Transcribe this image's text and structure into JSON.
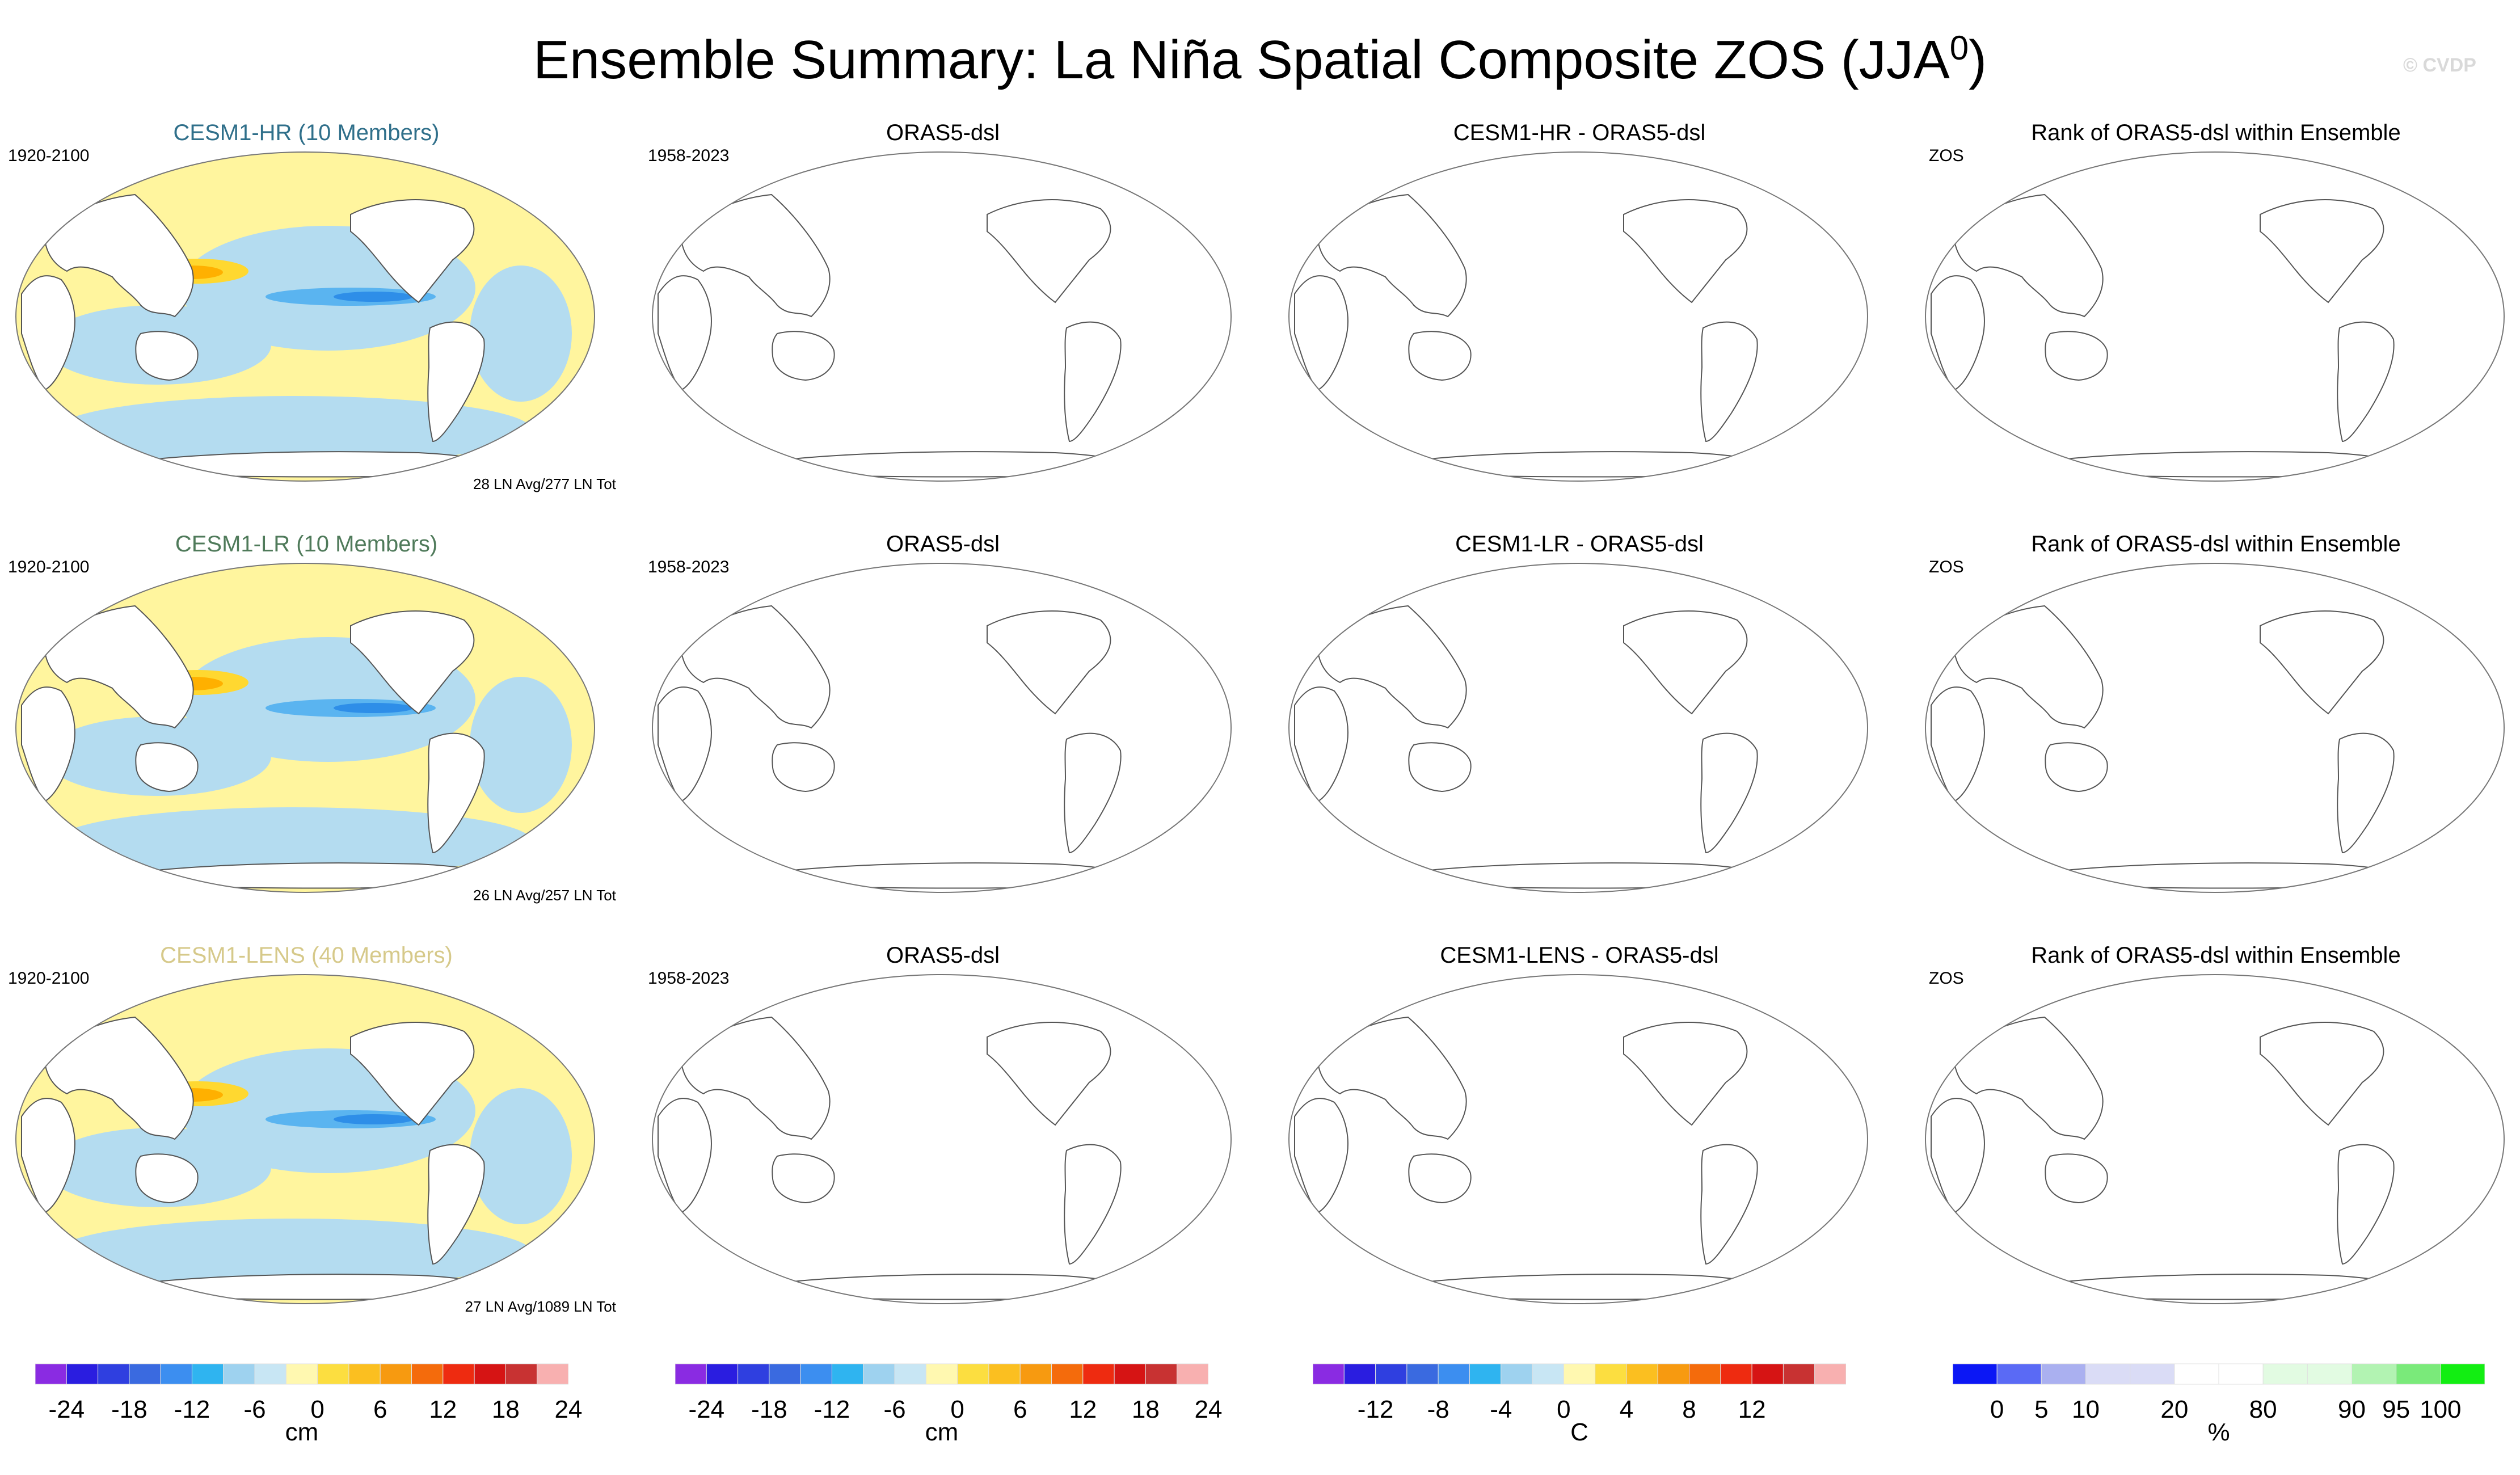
{
  "title": "Ensemble Summary: La Niña Spatial Composite ZOS (JJA",
  "title_sup": "0",
  "title_close": ")",
  "watermark": "© CVDP",
  "colors": {
    "land": "#ffffff",
    "coast": "#555555",
    "positive": "#fff59e",
    "negative": "#b4dcf0",
    "orange": "#ffb000",
    "yellow": "#ffd830",
    "blue_mid": "#5ab4f0",
    "blue_dark": "#2e8ee8"
  },
  "rows": [
    {
      "model_title": "CESM1-HR (10 Members)",
      "model_color": "#2f6f8a",
      "model_period": "1920-2100",
      "model_footer": "28 LN Avg/277 LN Tot",
      "obs_title": "ORAS5-dsl",
      "obs_period": "1958-2023",
      "diff_title": "CESM1-HR - ORAS5-dsl",
      "rank_title": "Rank of ORAS5-dsl within Ensemble",
      "rank_var": "ZOS"
    },
    {
      "model_title": "CESM1-LR (10 Members)",
      "model_color": "#4f7a5a",
      "model_period": "1920-2100",
      "model_footer": "26 LN Avg/257 LN Tot",
      "obs_title": "ORAS5-dsl",
      "obs_period": "1958-2023",
      "diff_title": "CESM1-LR - ORAS5-dsl",
      "rank_title": "Rank of ORAS5-dsl within Ensemble",
      "rank_var": "ZOS"
    },
    {
      "model_title": "CESM1-LENS (40 Members)",
      "model_color": "#d6c98a",
      "model_period": "1920-2100",
      "model_footer": "27 LN Avg/1089 LN Tot",
      "obs_title": "ORAS5-dsl",
      "obs_period": "1958-2023",
      "diff_title": "CESM1-LENS - ORAS5-dsl",
      "rank_title": "Rank of ORAS5-dsl within Ensemble",
      "rank_var": "ZOS"
    }
  ],
  "colorbars": [
    {
      "unit": "cm",
      "colors": [
        "#8a2be2",
        "#2a1de0",
        "#2f3fe0",
        "#3a6ae0",
        "#3c8ef0",
        "#2fb4f0",
        "#9ed2ef",
        "#c8e6f4",
        "#fff8b0",
        "#fcde40",
        "#fbbf20",
        "#f79a10",
        "#f46b0c",
        "#ee2b10",
        "#d61414",
        "#c83232",
        "#f8b0b0"
      ],
      "ticks": [
        "-24",
        "-18",
        "-12",
        "-6",
        "0",
        "6",
        "12",
        "18",
        "24"
      ],
      "tick_pos": [
        1,
        3,
        5,
        7,
        9,
        11,
        13,
        15,
        17
      ]
    },
    {
      "unit": "cm",
      "colors": [
        "#8a2be2",
        "#2a1de0",
        "#2f3fe0",
        "#3a6ae0",
        "#3c8ef0",
        "#2fb4f0",
        "#9ed2ef",
        "#c8e6f4",
        "#fff8b0",
        "#fcde40",
        "#fbbf20",
        "#f79a10",
        "#f46b0c",
        "#ee2b10",
        "#d61414",
        "#c83232",
        "#f8b0b0"
      ],
      "ticks": [
        "-24",
        "-18",
        "-12",
        "-6",
        "0",
        "6",
        "12",
        "18",
        "24"
      ],
      "tick_pos": [
        1,
        3,
        5,
        7,
        9,
        11,
        13,
        15,
        17
      ]
    },
    {
      "unit": "C",
      "colors": [
        "#8a2be2",
        "#2a1de0",
        "#2f3fe0",
        "#3a6ae0",
        "#3c8ef0",
        "#2fb4f0",
        "#9ed2ef",
        "#c8e6f4",
        "#fff8b0",
        "#fcde40",
        "#fbbf20",
        "#f79a10",
        "#f46b0c",
        "#ee2b10",
        "#d61414",
        "#c83232",
        "#f8b0b0"
      ],
      "ticks": [
        "-12",
        "-8",
        "-4",
        "0",
        "4",
        "8",
        "12"
      ],
      "tick_pos": [
        2,
        4,
        6,
        8,
        10,
        12,
        14
      ]
    },
    {
      "unit": "%",
      "colors": [
        "#0b17f5",
        "#5a6af5",
        "#aab0f0",
        "#dadcf6",
        "#dadcf6",
        "#ffffff",
        "#ffffff",
        "#e2fbe2",
        "#e2fbe2",
        "#b2f3b2",
        "#7aea7a",
        "#12ee12"
      ],
      "ticks": [
        "0",
        "5",
        "10",
        "20",
        "80",
        "90",
        "95",
        "100"
      ],
      "tick_pos": [
        1,
        2,
        3,
        5,
        7,
        9,
        10,
        11
      ]
    }
  ]
}
